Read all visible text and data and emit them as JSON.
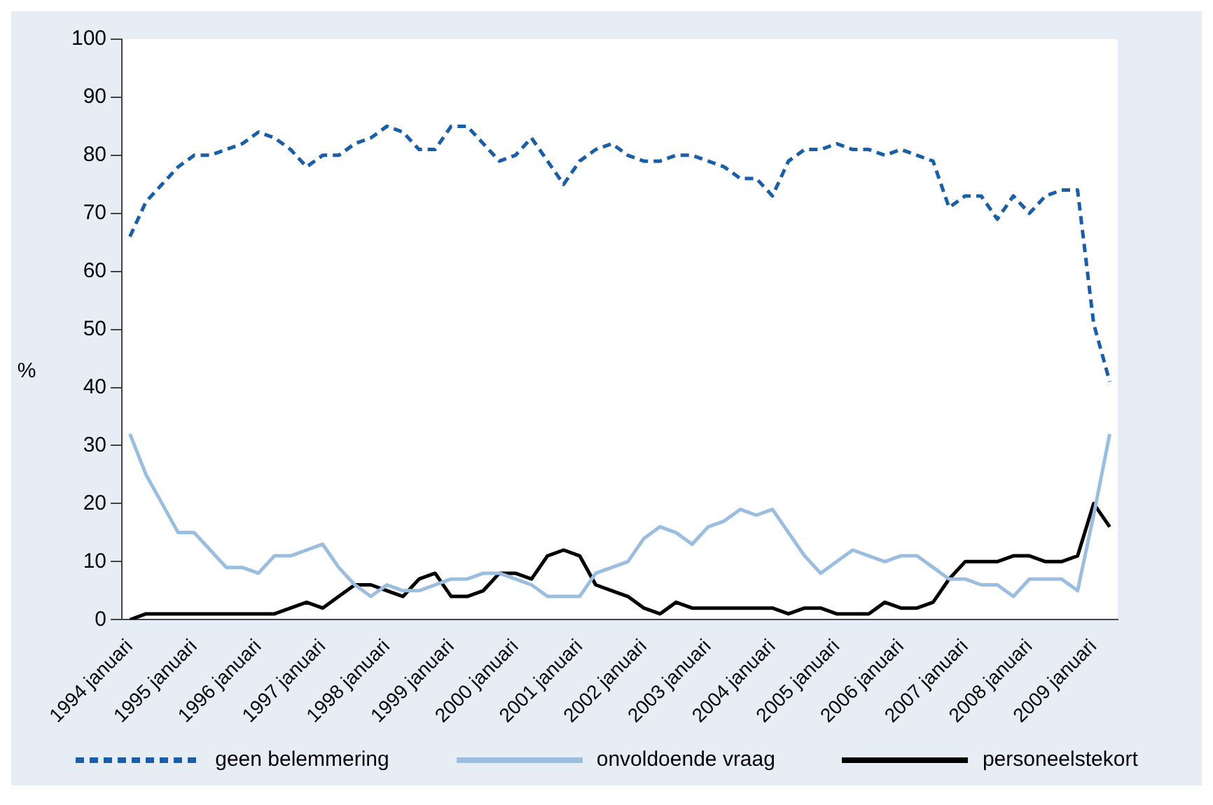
{
  "chart_data": {
    "type": "line",
    "ylabel": "%",
    "categories": [
      "1994 januari",
      null,
      null,
      null,
      "1995 januari",
      null,
      null,
      null,
      "1996 januari",
      null,
      null,
      null,
      "1997 januari",
      null,
      null,
      null,
      "1998 januari",
      null,
      null,
      null,
      "1999 januari",
      null,
      null,
      null,
      "2000 januari",
      null,
      null,
      null,
      "2001 januari",
      null,
      null,
      null,
      "2002 januari",
      null,
      null,
      null,
      "2003 januari",
      null,
      null,
      null,
      "2004 januari",
      null,
      null,
      null,
      "2005 januari",
      null,
      null,
      null,
      "2006 januari",
      null,
      null,
      null,
      "2007 januari",
      null,
      null,
      null,
      "2008 januari",
      null,
      null,
      null,
      "2009 januari",
      null
    ],
    "series": [
      {
        "name": "geen belemmering",
        "color": "#1a5ea8",
        "line_style": "dashed",
        "values": [
          66,
          72,
          75,
          78,
          80,
          80,
          81,
          82,
          84,
          83,
          81,
          78,
          80,
          80,
          82,
          83,
          85,
          84,
          81,
          81,
          85,
          85,
          82,
          79,
          80,
          83,
          79,
          75,
          79,
          81,
          82,
          80,
          79,
          79,
          80,
          80,
          79,
          78,
          76,
          76,
          73,
          79,
          81,
          81,
          82,
          81,
          81,
          80,
          81,
          80,
          79,
          71,
          73,
          73,
          69,
          73,
          70,
          73,
          74,
          74,
          51,
          41
        ]
      },
      {
        "name": "onvoldoende vraag",
        "color": "#9bbde0",
        "line_style": "solid",
        "values": [
          32,
          25,
          20,
          15,
          15,
          12,
          9,
          9,
          8,
          11,
          11,
          12,
          13,
          9,
          6,
          4,
          6,
          5,
          5,
          6,
          7,
          7,
          8,
          8,
          7,
          6,
          4,
          4,
          4,
          8,
          9,
          10,
          14,
          16,
          15,
          13,
          16,
          17,
          19,
          18,
          19,
          15,
          11,
          8,
          10,
          12,
          11,
          10,
          11,
          11,
          9,
          7,
          7,
          6,
          6,
          4,
          7,
          7,
          7,
          5,
          18,
          32
        ]
      },
      {
        "name": "personeelstekort",
        "color": "#000000",
        "line_style": "solid",
        "values": [
          0,
          1,
          1,
          1,
          1,
          1,
          1,
          1,
          1,
          1,
          2,
          3,
          2,
          4,
          6,
          6,
          5,
          4,
          7,
          8,
          4,
          4,
          5,
          8,
          8,
          7,
          11,
          12,
          11,
          6,
          5,
          4,
          2,
          1,
          3,
          2,
          2,
          2,
          2,
          2,
          2,
          1,
          2,
          2,
          1,
          1,
          1,
          3,
          2,
          2,
          3,
          7,
          10,
          10,
          10,
          11,
          11,
          10,
          10,
          11,
          20,
          16
        ]
      }
    ],
    "ylim": [
      0,
      100
    ],
    "yticks": [
      0,
      10,
      20,
      30,
      40,
      50,
      60,
      70,
      80,
      90,
      100
    ],
    "grid": false,
    "legend": "bottom",
    "marker": "none"
  }
}
